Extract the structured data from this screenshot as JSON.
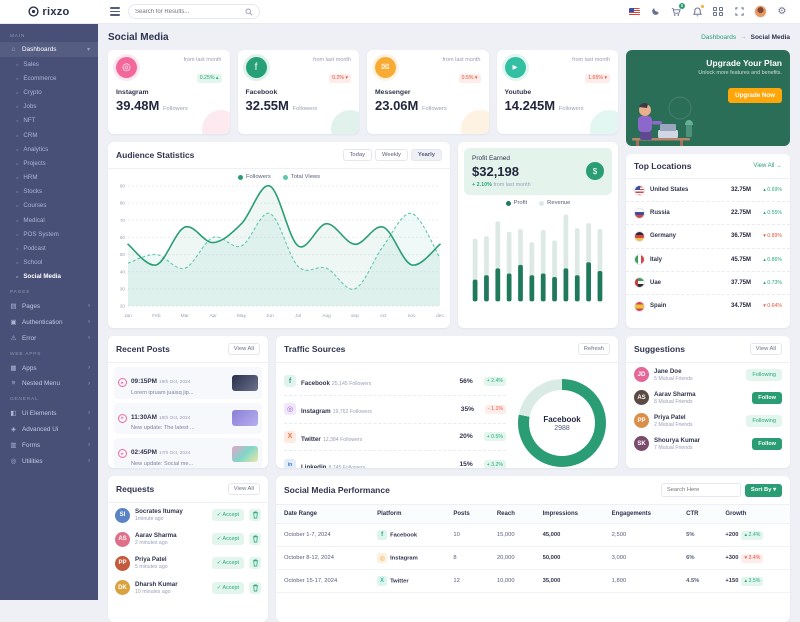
{
  "brand": {
    "name": "rixzo"
  },
  "topbar": {
    "search_placeholder": "Search for Results...",
    "cart_badge": "5",
    "icons": [
      "us-flag",
      "moon",
      "cart",
      "bell",
      "grid",
      "fullscreen",
      "avatar",
      "gear"
    ]
  },
  "page": {
    "title": "Social Media",
    "breadcrumb": [
      "Dashboards",
      "Social Media"
    ]
  },
  "sidebar": {
    "sections": [
      {
        "label": "MAIN",
        "items": [
          {
            "label": "Dashboards",
            "icon": "home",
            "expanded": true,
            "children": [
              "Sales",
              "Ecommerce",
              "Crypto",
              "Jobs",
              "NFT",
              "CRM",
              "Analytics",
              "Projects",
              "HRM",
              "Stocks",
              "Courses",
              "Medical",
              "POS System",
              "Podcast",
              "School",
              "Social Media"
            ],
            "active_child": "Social Media"
          }
        ]
      },
      {
        "label": "PAGES",
        "items": [
          {
            "label": "Pages",
            "icon": "pages"
          },
          {
            "label": "Authentication",
            "icon": "lock"
          },
          {
            "label": "Error",
            "icon": "error"
          }
        ]
      },
      {
        "label": "WEB APPS",
        "items": [
          {
            "label": "Apps",
            "icon": "apps"
          },
          {
            "label": "Nested Menu",
            "icon": "nested"
          }
        ]
      },
      {
        "label": "GENERAL",
        "items": [
          {
            "label": "Ui Elements",
            "icon": "ui"
          },
          {
            "label": "Advanced Ui",
            "icon": "advanced"
          },
          {
            "label": "Forms",
            "icon": "forms"
          },
          {
            "label": "Utilities",
            "icon": "utilities"
          }
        ]
      }
    ]
  },
  "stats": [
    {
      "platform": "Instagram",
      "value": "39.48M",
      "unit": "Followers",
      "period": "from last month",
      "change": "0.25%",
      "direction": "up",
      "icon": "instagram-icon",
      "color": "#f2689b"
    },
    {
      "platform": "Facebook",
      "value": "32.55M",
      "unit": "Followers",
      "period": "from last month",
      "change": "0.2%",
      "direction": "down",
      "icon": "facebook-icon",
      "color": "#27a078"
    },
    {
      "platform": "Messenger",
      "value": "23.06M",
      "unit": "Followers",
      "period": "from last month",
      "change": "0.5%",
      "direction": "down",
      "icon": "messenger-icon",
      "color": "#f8ab33"
    },
    {
      "platform": "Youtube",
      "value": "14.245M",
      "unit": "Followers",
      "period": "from last month",
      "change": "1.65%",
      "direction": "down",
      "icon": "youtube-icon",
      "color": "#33bfa2"
    }
  ],
  "upgrade": {
    "title": "Upgrade Your Plan",
    "subtitle": "Unlock more features and benefits.",
    "button": "Upgrade Now",
    "bg_color": "#2b6e58",
    "button_color": "#ffa60b"
  },
  "audience": {
    "title": "Audience Statistics",
    "tabs": [
      "Today",
      "Weekly",
      "Yearly"
    ],
    "active_tab": "Yearly",
    "chart_data": {
      "type": "line",
      "x": [
        "Jan",
        "Feb",
        "Mar",
        "Apr",
        "May",
        "Jun",
        "Jul",
        "Aug",
        "sep",
        "oct",
        "nov",
        "dec"
      ],
      "series": [
        {
          "name": "Followers",
          "style": "solid",
          "color": "#2a9d74",
          "values": [
            56,
            44,
            66,
            57,
            68,
            90,
            55,
            68,
            56,
            66,
            44,
            56
          ]
        },
        {
          "name": "Total Views",
          "style": "dashed",
          "color": "#5fc7ae",
          "values": [
            45,
            50,
            42,
            60,
            55,
            74,
            43,
            42,
            30,
            55,
            74,
            48
          ]
        }
      ],
      "ylim": [
        20,
        90
      ],
      "yticks": [
        90,
        80,
        70,
        60,
        50,
        40,
        30,
        20
      ],
      "grid": true,
      "legend_position": "top-center"
    }
  },
  "profit": {
    "title": "Profit Earned",
    "value": "$32,198",
    "change": "+ 2.10%",
    "period": "from last month",
    "chart_data": {
      "type": "bar",
      "series": [
        {
          "name": "Profit",
          "color": "#1e7a5b",
          "values": [
            25,
            30,
            38,
            32,
            42,
            30,
            32,
            28,
            38,
            30,
            45,
            35
          ]
        },
        {
          "name": "Revenue",
          "color": "#dde9e4",
          "values": [
            72,
            75,
            92,
            80,
            83,
            68,
            82,
            70,
            100,
            84,
            90,
            83
          ]
        }
      ],
      "ylim": [
        0,
        100
      ]
    }
  },
  "top_locations": {
    "title": "Top Locations",
    "view_all": "View All",
    "rows": [
      {
        "country": "United States",
        "flag": "us",
        "value": "32.75M",
        "change": "0.69%",
        "direction": "up"
      },
      {
        "country": "Russia",
        "flag": "ru",
        "value": "22.75M",
        "change": "0.55%",
        "direction": "up"
      },
      {
        "country": "Germany",
        "flag": "de",
        "value": "36.75M",
        "change": "0.89%",
        "direction": "down"
      },
      {
        "country": "Italy",
        "flag": "it",
        "value": "45.75M",
        "change": "0.86%",
        "direction": "up"
      },
      {
        "country": "Uae",
        "flag": "ae",
        "value": "37.75M",
        "change": "0.73%",
        "direction": "up"
      },
      {
        "country": "Spain",
        "flag": "es",
        "value": "34.75M",
        "change": "0.64%",
        "direction": "down"
      }
    ]
  },
  "recent_posts": {
    "title": "Recent Posts",
    "view_all": "View All",
    "items": [
      {
        "time": "09:15PM",
        "date": "19th Oct, 2024",
        "text": "Lorem ipruam juaisq jip...",
        "thumb": "dark"
      },
      {
        "time": "11:30AM",
        "date": "18th Oct, 2024",
        "text": "New update: The latest ...",
        "thumb": "purple"
      },
      {
        "time": "02:45PM",
        "date": "17th Oct, 2024",
        "text": "New update: Social me...",
        "thumb": "holo"
      }
    ]
  },
  "traffic": {
    "title": "Traffic Sources",
    "refresh": "Refresh",
    "donut": {
      "label": "Facebook",
      "value": "2988",
      "percent": 78,
      "color": "#2a9d74",
      "track": "#d9ebe4"
    },
    "rows": [
      {
        "name": "Facebook",
        "followers": "25,145 Followers",
        "share": "56%",
        "change": "+ 2.4%",
        "direction": "up",
        "icon": "facebook-icon"
      },
      {
        "name": "Instagram",
        "followers": "19,762 Followers",
        "share": "35%",
        "change": "- 1.1%",
        "direction": "down",
        "icon": "instagram-icon"
      },
      {
        "name": "Twitter",
        "followers": "12,384 Followers",
        "share": "20%",
        "change": "+ 0.5%",
        "direction": "up",
        "icon": "twitter-icon"
      },
      {
        "name": "Linkedin",
        "followers": "8,745 Followers",
        "share": "15%",
        "change": "+ 3.2%",
        "direction": "up",
        "icon": "linkedin-icon"
      }
    ]
  },
  "suggestions": {
    "title": "Suggestions",
    "view_all": "View All",
    "rows": [
      {
        "name": "Jane Doe",
        "mutual": "5 Mutual Friends",
        "state": "Following"
      },
      {
        "name": "Aarav Sharma",
        "mutual": "8 Mutual Friends",
        "state": "Follow"
      },
      {
        "name": "Priya Patel",
        "mutual": "2 Mutual Friends",
        "state": "Following"
      },
      {
        "name": "Shourya Kumar",
        "mutual": "7 Mutual Friends",
        "state": "Follow"
      }
    ]
  },
  "requests": {
    "title": "Requests",
    "view_all": "View All",
    "accept_label": "Accept",
    "rows": [
      {
        "name": "Socrates Itumay",
        "time": "1minute ago"
      },
      {
        "name": "Aarav Sharma",
        "time": "2 minutes ago"
      },
      {
        "name": "Priya Patel",
        "time": "5 minutes ago"
      },
      {
        "name": "Dharsh Kumar",
        "time": "10 minutes ago"
      }
    ]
  },
  "performance": {
    "title": "Social Media Performance",
    "search_placeholder": "Search Here",
    "sort_by": "Sort By",
    "columns": [
      "Date Range",
      "Platform",
      "Posts",
      "Reach",
      "Impressions",
      "Engagements",
      "CTR",
      "Growth"
    ],
    "rows": [
      {
        "date": "October 1-7, 2024",
        "platform": "Facebook",
        "posts": "10",
        "reach": "15,000",
        "impressions": "45,000",
        "engagements": "2,500",
        "ctr": "5%",
        "growth": "+200",
        "badge": "2.4%",
        "direction": "up"
      },
      {
        "date": "October 8-12, 2024",
        "platform": "Instagram",
        "posts": "8",
        "reach": "20,000",
        "impressions": "50,000",
        "engagements": "3,000",
        "ctr": "6%",
        "growth": "+300",
        "badge": "3.4%",
        "direction": "down"
      },
      {
        "date": "October 15-17, 2024",
        "platform": "Twitter",
        "posts": "12",
        "reach": "10,000",
        "impressions": "35,000",
        "engagements": "1,800",
        "ctr": "4.5%",
        "growth": "+150",
        "badge": "3.5%",
        "direction": "up"
      }
    ]
  },
  "colors": {
    "primary_green": "#2a9d74",
    "badge_green_bg": "#e2f6ee",
    "badge_red_bg": "#fdecea",
    "badge_red_text": "#e6543d",
    "sidebar_bg": "#485078",
    "orange": "#ffa60b"
  }
}
